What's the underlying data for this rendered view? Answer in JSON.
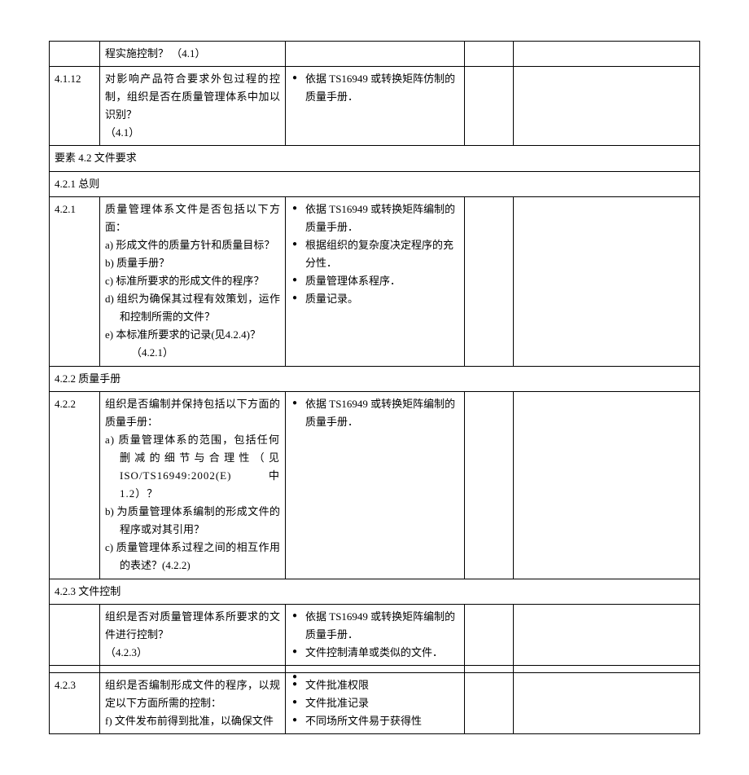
{
  "rows": {
    "r0": {
      "q": "程实施控制？ （4.1）"
    },
    "r4_1_12": {
      "num": "4.1.12",
      "q1": "对影响产品符合要求外包过程的控制，组织是否在质量管理体系中加以识别？",
      "q2": "（4.1）",
      "ev1": "依据 TS16949 或转换矩阵仿制的质量手册．"
    },
    "sec42": "要素 4.2 文件要求",
    "sec421": "4.2.1 总则",
    "r4_2_1": {
      "num": "4.2.1",
      "q1": "质量管理体系文件是否包括以下方面：",
      "qa": "a) 形成文件的质量方针和质量目标？",
      "qb": "b) 质量手册？",
      "qc": "c) 标准所要求的形成文件的程序？",
      "qd": "d) 组织为确保其过程有效策划，运作和控制所需的文件？",
      "qe": "e) 本标准所要求的记录(见4.2.4)？",
      "qf": "（4.2.1）",
      "ev1": "依据 TS16949 或转换矩阵编制的质量手册．",
      "ev2": "根据组织的复杂度决定程序的充分性．",
      "ev3": "质量管理体系程序．",
      "ev4": "质量记录。"
    },
    "sec422": "4.2.2 质量手册",
    "r4_2_2": {
      "num": "4.2.2",
      "q1": "组织是否编制并保持包括以下方面的质量手册：",
      "qa1": "a) 质量管理体系的范围，包括任何删减的细节与合理性（见ISO/TS16949:2002(E)中1.2）？",
      "qb": "b) 为质量管理体系编制的形成文件的程序或对其引用？",
      "qc": "c) 质量管理体系过程之间的相互作用的表述？(4.2.2)",
      "ev1": "依据 TS16949 或转换矩阵编制的质量手册．"
    },
    "sec423": "4.2.3 文件控制",
    "r4_2_3a": {
      "q1": "组织是否对质量管理体系所要求的文件进行控制？",
      "q2": "（4.2.3）",
      "ev1": "依据 TS16949 或转换矩阵编制的质量手册．",
      "ev2": "文件控制清单或类似的文件．"
    },
    "r4_2_3b": {
      "num": "4.2.3",
      "q1": "组织是否编制形成文件的程序，以规定以下方面所需的控制：",
      "qa": "f) 文件发布前得到批准，以确保文件",
      "ev1": "文件批准权限",
      "ev2": "文件批准记录",
      "ev3": "不同场所文件易于获得性"
    }
  }
}
